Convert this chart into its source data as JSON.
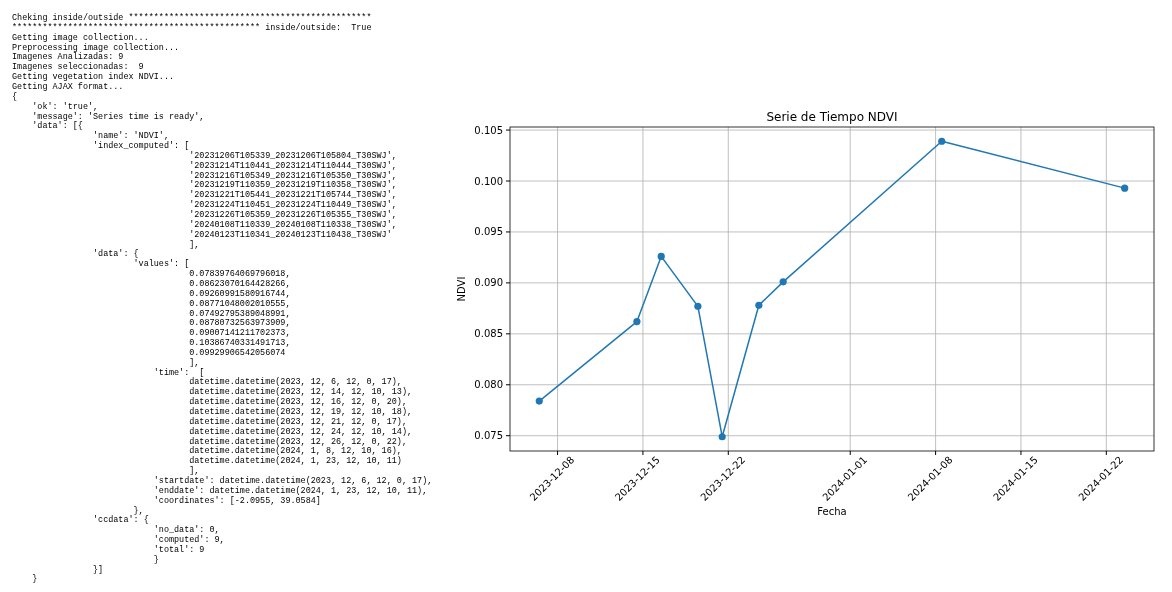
{
  "chart_data": [
    {
      "type": "other",
      "annotations": [
        "Cheking inside/outside ************************************************",
        "************************************************* inside/outside:  True",
        "Getting image collection...",
        "Preprocessing image collection...",
        "Imagenes Analizadas: 9",
        "Imagenes seleccionadas:  9",
        "Getting vegetation index NDVI...",
        "Getting AJAX format...",
        "{",
        "    'ok': 'true',",
        "    'message': 'Series time is ready',",
        "    'data': [{",
        "                'name': 'NDVI',",
        "                'index_computed': [",
        "                                   '20231206T105339_20231206T105804_T30SWJ',",
        "                                   '20231214T110441_20231214T110444_T30SWJ',",
        "                                   '20231216T105349_20231216T105350_T30SWJ',",
        "                                   '20231219T110359_20231219T110358_T30SWJ',",
        "                                   '20231221T105441_20231221T105744_T30SWJ',",
        "                                   '20231224T110451_20231224T110449_T30SWJ',",
        "                                   '20231226T105359_20231226T105355_T30SWJ',",
        "                                   '20240108T110339_20240108T110338_T30SWJ',",
        "                                   '20240123T110341_20240123T110438_T30SWJ'",
        "                                   ],",
        "                'data': {",
        "                        'values': [",
        "                                   0.07839764069796018,",
        "                                   0.08623070164428266,",
        "                                   0.09260991580916744,",
        "                                   0.08771048002010555,",
        "                                   0.07492795389048991,",
        "                                   0.08780732563973909,",
        "                                   0.09007141211702373,",
        "                                   0.10386740331491713,",
        "                                   0.09929906542056074",
        "                                   ],",
        "                            'time':  [",
        "                                   datetime.datetime(2023, 12, 6, 12, 0, 17),",
        "                                   datetime.datetime(2023, 12, 14, 12, 10, 13),",
        "                                   datetime.datetime(2023, 12, 16, 12, 0, 20),",
        "                                   datetime.datetime(2023, 12, 19, 12, 10, 18),",
        "                                   datetime.datetime(2023, 12, 21, 12, 0, 17),",
        "                                   datetime.datetime(2023, 12, 24, 12, 10, 14),",
        "                                   datetime.datetime(2023, 12, 26, 12, 0, 22),",
        "                                   datetime.datetime(2024, 1, 8, 12, 10, 16),",
        "                                   datetime.datetime(2024, 1, 23, 12, 10, 11)",
        "                                   ],",
        "                            'startdate': datetime.datetime(2023, 12, 6, 12, 0, 17),",
        "                            'enddate': datetime.datetime(2024, 1, 23, 12, 10, 11),",
        "                            'coordinates': [-2.0955, 39.0584]",
        "                        },",
        "                'ccdata': {",
        "                            'no_data': 0,",
        "                            'computed': 9,",
        "                            'total': 9",
        "                            }",
        "                }]",
        "    }"
      ]
    },
    {
      "type": "line",
      "title": "Serie de Tiempo NDVI",
      "xlabel": "Fecha",
      "ylabel": "NDVI",
      "x": [
        "2023-12-06T12:00",
        "2023-12-14T12:10",
        "2023-12-16T12:00",
        "2023-12-19T12:10",
        "2023-12-21T12:00",
        "2023-12-24T12:10",
        "2023-12-26T12:00",
        "2024-01-08T12:10",
        "2024-01-23T12:10"
      ],
      "series": [
        {
          "color": "#1f77b4",
          "values": [
            0.0784,
            0.0862,
            0.0926,
            0.0877,
            0.0749,
            0.0878,
            0.0901,
            0.1039,
            0.0993
          ]
        }
      ],
      "xlim": [
        "2023-12-04T02:24",
        "2024-01-25T21:50"
      ],
      "xticks": [
        "2023-12-08",
        "2023-12-15",
        "2023-12-22",
        "2024-01-01",
        "2024-01-08",
        "2024-01-15",
        "2024-01-22"
      ],
      "ylim": [
        0.0735,
        0.1053
      ],
      "yticks": [
        {
          "value": 0.075,
          "label": "0.075"
        },
        {
          "value": 0.08,
          "label": "0.080"
        },
        {
          "value": 0.085,
          "label": "0.085"
        },
        {
          "value": 0.09,
          "label": "0.090"
        },
        {
          "value": 0.095,
          "label": "0.095"
        },
        {
          "value": 0.1,
          "label": "0.100"
        },
        {
          "value": 0.105,
          "label": "0.105"
        }
      ],
      "grid": true,
      "marker": "circle",
      "line_style": "solid"
    }
  ]
}
